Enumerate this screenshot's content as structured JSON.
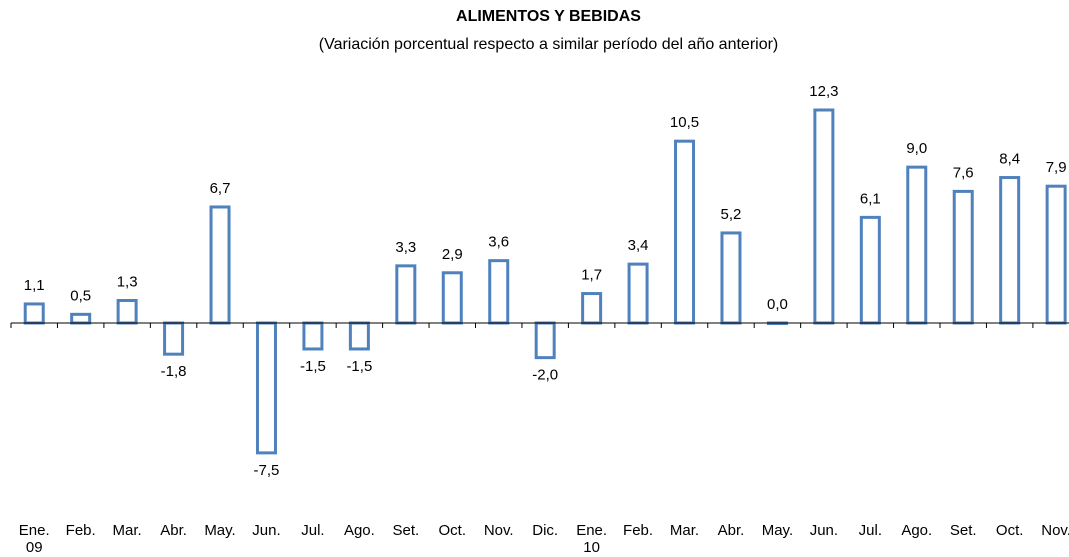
{
  "chart_data": {
    "type": "bar",
    "title": "ALIMENTOS Y BEBIDAS",
    "subtitle": "(Variación porcentual respecto a similar período del año anterior)",
    "categories": [
      "Ene.\n09",
      "Feb.",
      "Mar.",
      "Abr.",
      "May.",
      "Jun.",
      "Jul.",
      "Ago.",
      "Set.",
      "Oct.",
      "Nov.",
      "Dic.",
      "Ene.\n10",
      "Feb.",
      "Mar.",
      "Abr.",
      "May.",
      "Jun.",
      "Jul.",
      "Ago.",
      "Set.",
      "Oct.",
      "Nov."
    ],
    "values": [
      1.1,
      0.5,
      1.3,
      -1.8,
      6.7,
      -7.5,
      -1.5,
      -1.5,
      3.3,
      2.9,
      3.6,
      -2.0,
      1.7,
      3.4,
      10.5,
      5.2,
      0.0,
      12.3,
      6.1,
      9.0,
      7.6,
      8.4,
      7.9
    ],
    "value_labels": [
      "1,1",
      "0,5",
      "1,3",
      "-1,8",
      "6,7",
      "-7,5",
      "-1,5",
      "-1,5",
      "3,3",
      "2,9",
      "3,6",
      "-2,0",
      "1,7",
      "3,4",
      "10,5",
      "5,2",
      "0,0",
      "12,3",
      "6,1",
      "9,0",
      "7,6",
      "8,4",
      "7,9"
    ],
    "color": "#4f81bd"
  }
}
